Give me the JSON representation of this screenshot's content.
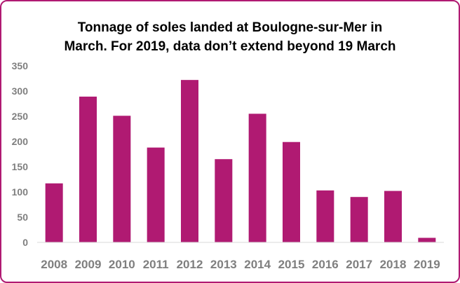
{
  "chart_data": {
    "type": "bar",
    "title_line1": "Tonnage of soles landed at Boulogne-sur-Mer in",
    "title_line2": "March. For 2019, data don’t extend beyond 19 March",
    "categories": [
      "2008",
      "2009",
      "2010",
      "2011",
      "2012",
      "2013",
      "2014",
      "2015",
      "2016",
      "2017",
      "2018",
      "2019"
    ],
    "values": [
      117,
      289,
      251,
      188,
      322,
      165,
      255,
      199,
      103,
      90,
      102,
      9
    ],
    "ylim": [
      0,
      350
    ],
    "yticks": [
      0,
      50,
      100,
      150,
      200,
      250,
      300,
      350
    ],
    "grid": false,
    "legend": "none",
    "bar_color": "#b01a72",
    "axis_color": "#d9d9d9",
    "tick_color": "#7f7f7f"
  }
}
